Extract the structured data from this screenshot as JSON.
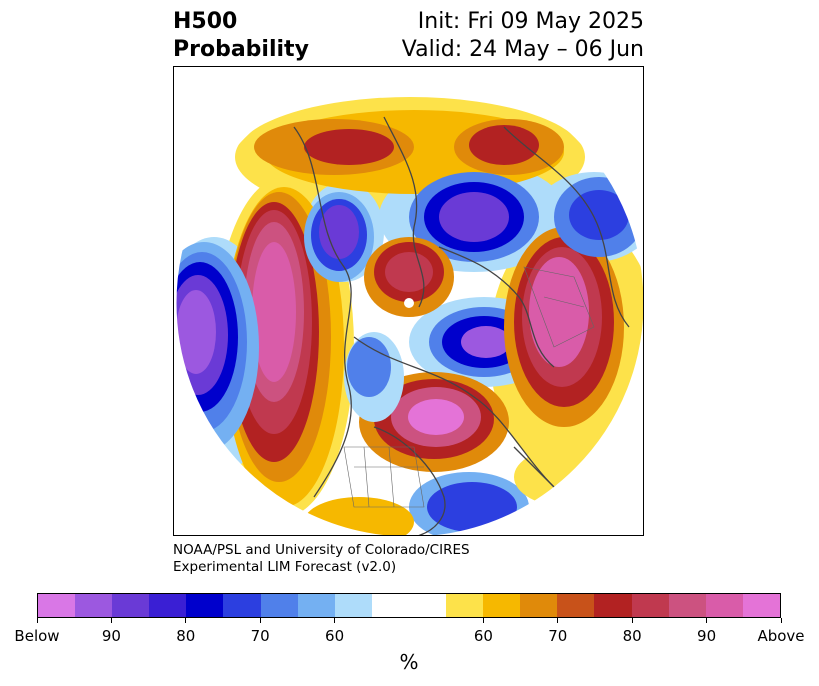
{
  "title": {
    "left_line1": "H500",
    "left_line2": "Probability",
    "right_line1": "Init: Fri 09 May 2025",
    "right_line2": "Valid: 24 May – 06 Jun"
  },
  "credit": {
    "line1": "NOAA/PSL and University of Colorado/CIRES",
    "line2": "Experimental LIM Forecast (v2.0)"
  },
  "colorbar": {
    "colors": [
      "#d977e6",
      "#9c58e0",
      "#6a3ad6",
      "#3a1fd4",
      "#0000cc",
      "#2c3fe0",
      "#5080ea",
      "#74b0f2",
      "#aedcfa",
      "#ffffff",
      "#ffffff",
      "#fde24a",
      "#f6b800",
      "#e08a0a",
      "#c8521a",
      "#b22222",
      "#c0394f",
      "#cc5280",
      "#d95ca9",
      "#e473d7"
    ],
    "tick_labels": [
      "Below",
      "90",
      "80",
      "70",
      "60",
      "60",
      "70",
      "80",
      "90",
      "Above"
    ],
    "unit": "%"
  },
  "map": {
    "projection": "north-polar-stereographic",
    "anomalies": [
      {
        "region": "North Pacific / Aleutians",
        "sign": "above",
        "level": "90"
      },
      {
        "region": "Western Canada / Alaska interior",
        "sign": "below",
        "level": "80"
      },
      {
        "region": "Northeast Atlantic / Hudson Bay",
        "sign": "above",
        "level": "Above"
      },
      {
        "region": "Western Russia / Europe",
        "sign": "above",
        "level": "90"
      },
      {
        "region": "North Atlantic / Greenland",
        "sign": "below",
        "level": "90"
      },
      {
        "region": "Siberia",
        "sign": "below",
        "level": "80"
      },
      {
        "region": "Arctic Ocean",
        "sign": "above",
        "level": "80"
      },
      {
        "region": "Western North Pacific",
        "sign": "below",
        "level": "Below"
      },
      {
        "region": "Mid-latitude Asia",
        "sign": "below",
        "level": "80"
      }
    ]
  }
}
